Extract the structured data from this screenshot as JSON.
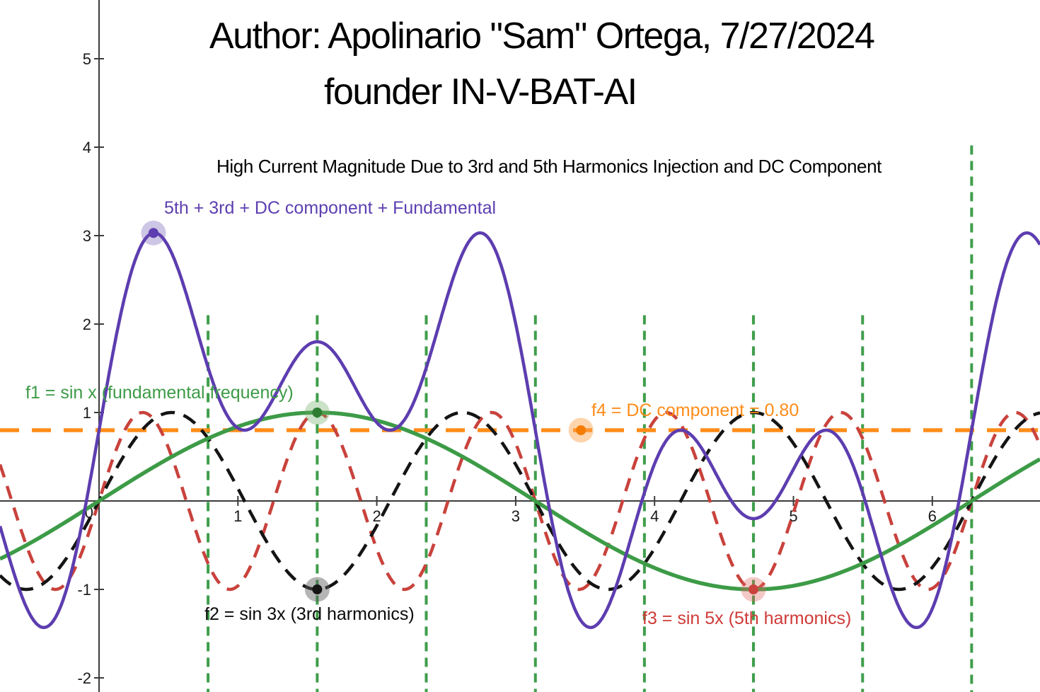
{
  "chart_data": {
    "type": "line",
    "title_lines": [
      "Author: Apolinario \"Sam\" Ortega, 7/27/2024",
      "founder IN-V-BAT-AI"
    ],
    "subtitle": "High Current Magnitude Due to 3rd and 5th Harmonics Injection and DC Component",
    "xlim": [
      -0.7132,
      6.7754
    ],
    "ylim": [
      -2.16,
      5.664
    ],
    "x_ticks": [
      1,
      2,
      3,
      4,
      5,
      6
    ],
    "y_ticks": [
      5,
      4,
      3,
      2,
      1,
      -1,
      -2
    ],
    "origin_label": "0",
    "axis_color": "#3c3c3c",
    "grid": false,
    "series": [
      {
        "id": "f4",
        "label": "f4 = DC component = 0.80",
        "expression": "y = 0.80",
        "color": "#ff8c1a",
        "width": 5.5,
        "dash": "27 18",
        "terms": [],
        "offset": 0.8
      },
      {
        "id": "f3",
        "label": "f3 = sin 5x (5th harmonics)",
        "expression": "sin(5x)",
        "color": "#c9423c",
        "width": 4.5,
        "dash": "19 13",
        "terms": [
          {
            "amp": 1,
            "freq": 5
          }
        ],
        "offset": 0
      },
      {
        "id": "f2",
        "label": "f2 = sin 3x (3rd harmonics)",
        "expression": "sin(3x)",
        "color": "#141414",
        "width": 4.5,
        "dash": "20 13",
        "terms": [
          {
            "amp": 1,
            "freq": 3
          }
        ],
        "offset": 0
      },
      {
        "id": "f1",
        "label": "f1 = sin x (fundamental frequency)",
        "expression": "sin(x)",
        "color": "#3d9b47",
        "width": 5.5,
        "dash": null,
        "terms": [
          {
            "amp": 1,
            "freq": 1
          }
        ],
        "offset": 0
      },
      {
        "id": "sum",
        "label": "5th + 3rd + DC component + Fundamental",
        "expression": "sin(x) + sin(3x) + sin(5x) + 0.80",
        "color": "#5d3db0",
        "width": 4.5,
        "dash": null,
        "terms": [
          {
            "amp": 1,
            "freq": 1
          },
          {
            "amp": 1,
            "freq": 3
          },
          {
            "amp": 1,
            "freq": 5
          }
        ],
        "offset": 0.8
      }
    ],
    "vertical_guides": {
      "color": "#3f9e4b",
      "width": 4,
      "dash": "13 9",
      "lines": [
        {
          "x": 0.785,
          "y_top": 2.1
        },
        {
          "x": 1.571,
          "y_top": 2.1
        },
        {
          "x": 2.356,
          "y_top": 2.1
        },
        {
          "x": 3.142,
          "y_top": 2.1
        },
        {
          "x": 3.927,
          "y_top": 2.1
        },
        {
          "x": 4.712,
          "y_top": 2.1
        },
        {
          "x": 5.498,
          "y_top": 2.1
        },
        {
          "x": 6.283,
          "y_top": 4.02
        }
      ]
    },
    "points": [
      {
        "id": "sum-max",
        "x": 0.392,
        "y": 3.03,
        "color": "#5d3db0",
        "halo": "rgba(103,78,175,0.32)"
      },
      {
        "id": "f1-max",
        "x": 1.571,
        "y": 1.0,
        "color": "#2e7d32",
        "halo": "rgba(106,168,96,0.35)"
      },
      {
        "id": "f2-min",
        "x": 1.571,
        "y": -1.0,
        "color": "#141414",
        "halo": "rgba(90,90,90,0.45)"
      },
      {
        "id": "f3-min",
        "x": 4.712,
        "y": -1.0,
        "color": "#c9423c",
        "halo": "rgba(220,100,95,0.35)"
      },
      {
        "id": "f4-point",
        "x": 3.47,
        "y": 0.8,
        "color": "#f57c00",
        "halo": "rgba(250,160,70,0.45)"
      }
    ]
  }
}
